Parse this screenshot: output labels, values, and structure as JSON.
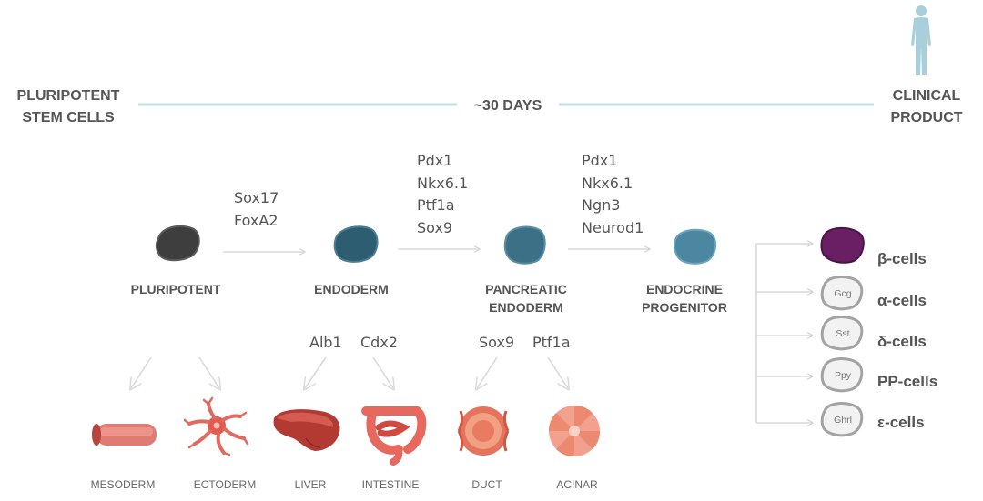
{
  "timeline": {
    "start_line1": "PLURIPOTENT",
    "start_line2": "STEM CELLS",
    "duration": "~30 DAYS",
    "end_line1": "CLINICAL",
    "end_line2": "PRODUCT",
    "color": "#c6dde6"
  },
  "stages": [
    {
      "label1": "PLURIPOTENT",
      "label2": "",
      "color": "#3e3e3e"
    },
    {
      "label1": "ENDODERM",
      "label2": "",
      "color": "#2d5d70"
    },
    {
      "label1": "PANCREATIC",
      "label2": "ENDODERM",
      "color": "#3b7087"
    },
    {
      "label1": "ENDOCRINE",
      "label2": "PROGENITOR",
      "color": "#4b87a0"
    }
  ],
  "transitions": [
    {
      "markers": [
        "Sox17",
        "FoxA2"
      ]
    },
    {
      "markers": [
        "Pdx1",
        "Nkx6.1",
        "Ptf1a",
        "Sox9"
      ]
    },
    {
      "markers": [
        "Pdx1",
        "Nkx6.1",
        "Ngn3",
        "Neurod1"
      ]
    }
  ],
  "lineage_markers": {
    "liver": "Alb1",
    "intestine": "Cdx2",
    "duct": "Sox9",
    "acinar": "Ptf1a"
  },
  "tissues": {
    "mesoderm": "MESODERM",
    "ectoderm": "ECTODERM",
    "liver": "LIVER",
    "intestine": "INTESTINE",
    "duct": "DUCT",
    "acinar": "ACINAR"
  },
  "endocrine_cells": [
    {
      "label": "β-cells",
      "hormone": "",
      "color": "#6a1e63"
    },
    {
      "label": "α-cells",
      "hormone": "Gcg",
      "color": "#f2f2f2"
    },
    {
      "label": "δ-cells",
      "hormone": "Sst",
      "color": "#f2f2f2"
    },
    {
      "label": "PP-cells",
      "hormone": "Ppy",
      "color": "#f2f2f2"
    },
    {
      "label": "ε-cells",
      "hormone": "Ghrl",
      "color": "#f2f2f2"
    }
  ]
}
